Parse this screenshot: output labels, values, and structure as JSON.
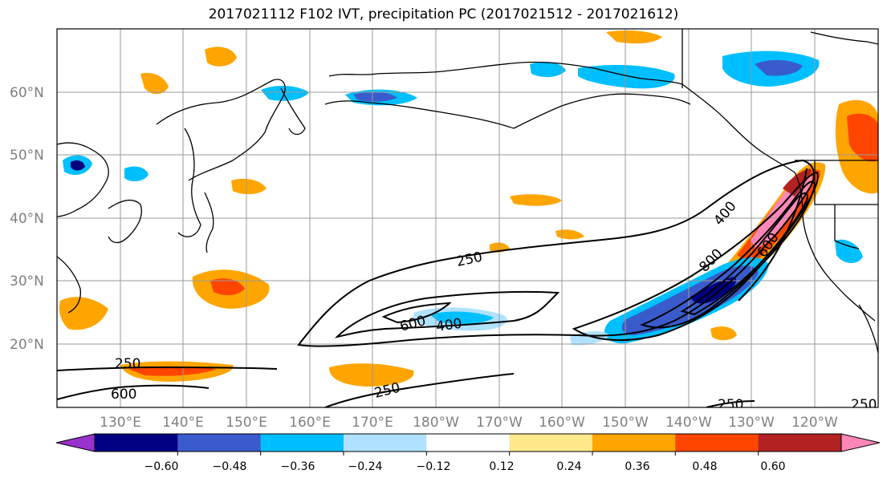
{
  "title": "2017021112 F102 IVT, precipitation PC (2017021512 - 2017021612)",
  "lat_labels": [
    "60°N",
    "50°N",
    "40°N",
    "30°N",
    "20°N"
  ],
  "lon_labels": [
    "130°E",
    "140°E",
    "150°E",
    "160°E",
    "170°E",
    "180°W",
    "170°W",
    "160°W",
    "150°W",
    "140°W",
    "130°W",
    "120°W"
  ],
  "contour_labels": [
    "250",
    "400",
    "600",
    "800",
    "250",
    "600",
    "400",
    "250",
    "600",
    "250",
    "250"
  ],
  "colorbar": {
    "colors": [
      "#9932cc",
      "#000080",
      "#3a5bcc",
      "#00bfff",
      "#b0e2ff",
      "#ffffff",
      "#ffe98a",
      "#ffa500",
      "#ff4500",
      "#b22222",
      "#ff87b7"
    ],
    "tick_labels": [
      "−0.60",
      "−0.48",
      "−0.36",
      "−0.24",
      "−0.12",
      "0.12",
      "0.24",
      "0.36",
      "0.48",
      "0.60"
    ]
  }
}
